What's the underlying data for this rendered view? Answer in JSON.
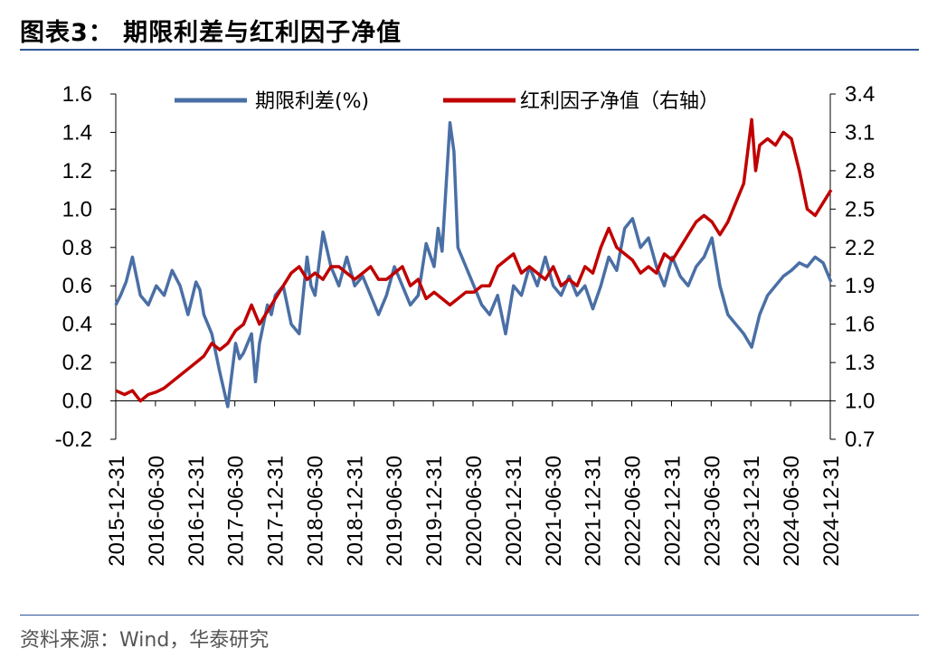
{
  "title": "图表3：  期限利差与红利因子净值",
  "source": "资料来源：Wind，华泰研究",
  "colors": {
    "spread": "#4a6fa5",
    "dividend": "#c00000",
    "rule": "#2e5597"
  },
  "chart_data": {
    "type": "line",
    "title": "期限利差与红利因子净值",
    "x_ticks": [
      "2015-12-31",
      "2016-06-30",
      "2016-12-31",
      "2017-06-30",
      "2017-12-31",
      "2018-06-30",
      "2018-12-31",
      "2019-06-30",
      "2019-12-31",
      "2020-06-30",
      "2020-12-31",
      "2021-06-30",
      "2021-12-31",
      "2022-06-30",
      "2022-12-31",
      "2023-06-30",
      "2023-12-31",
      "2024-06-30",
      "2024-12-31"
    ],
    "y_left": {
      "label": "期限利差(%)",
      "range": [
        -0.2,
        1.6
      ],
      "ticks": [
        "-0.2",
        "0.0",
        "0.2",
        "0.4",
        "0.6",
        "0.8",
        "1.0",
        "1.2",
        "1.4",
        "1.6"
      ]
    },
    "y_right": {
      "label": "红利因子净值（右轴）",
      "range": [
        0.7,
        3.4
      ],
      "ticks": [
        "0.7",
        "1.0",
        "1.3",
        "1.6",
        "1.9",
        "2.2",
        "2.5",
        "2.8",
        "3.1",
        "3.4"
      ]
    },
    "legend": [
      "期限利差(%)",
      "红利因子净值（右轴）"
    ],
    "legend_position": "top",
    "series": [
      {
        "name": "期限利差(%)",
        "axis": "left",
        "color": "#4a6fa5",
        "x": [
          2015.99,
          2016.05,
          2016.12,
          2016.2,
          2016.3,
          2016.4,
          2016.5,
          2016.6,
          2016.7,
          2016.8,
          2016.9,
          2017.0,
          2017.05,
          2017.1,
          2017.2,
          2017.3,
          2017.4,
          2017.5,
          2017.55,
          2017.6,
          2017.7,
          2017.75,
          2017.8,
          2017.9,
          2017.95,
          2018.0,
          2018.1,
          2018.2,
          2018.3,
          2018.4,
          2018.45,
          2018.5,
          2018.6,
          2018.7,
          2018.8,
          2018.9,
          2019.0,
          2019.1,
          2019.2,
          2019.3,
          2019.4,
          2019.5,
          2019.6,
          2019.7,
          2019.8,
          2019.9,
          2020.0,
          2020.05,
          2020.1,
          2020.2,
          2020.25,
          2020.3,
          2020.35,
          2020.4,
          2020.5,
          2020.6,
          2020.7,
          2020.8,
          2020.9,
          2021.0,
          2021.1,
          2021.2,
          2021.3,
          2021.4,
          2021.5,
          2021.6,
          2021.7,
          2021.8,
          2021.9,
          2022.0,
          2022.1,
          2022.2,
          2022.3,
          2022.4,
          2022.5,
          2022.6,
          2022.7,
          2022.8,
          2022.9,
          2023.0,
          2023.1,
          2023.2,
          2023.3,
          2023.4,
          2023.5,
          2023.6,
          2023.7,
          2023.8,
          2023.9,
          2024.0,
          2024.1,
          2024.2,
          2024.3,
          2024.4,
          2024.5,
          2024.6,
          2024.7,
          2024.8,
          2024.9,
          2025.0
        ],
        "values": [
          0.5,
          0.55,
          0.62,
          0.75,
          0.55,
          0.5,
          0.6,
          0.55,
          0.68,
          0.6,
          0.45,
          0.62,
          0.58,
          0.45,
          0.35,
          0.15,
          -0.03,
          0.3,
          0.22,
          0.25,
          0.35,
          0.1,
          0.3,
          0.5,
          0.45,
          0.55,
          0.6,
          0.4,
          0.35,
          0.75,
          0.6,
          0.55,
          0.88,
          0.7,
          0.6,
          0.75,
          0.6,
          0.65,
          0.55,
          0.45,
          0.55,
          0.7,
          0.6,
          0.5,
          0.55,
          0.82,
          0.7,
          0.9,
          0.78,
          1.45,
          1.3,
          0.8,
          0.75,
          0.7,
          0.6,
          0.5,
          0.45,
          0.55,
          0.35,
          0.6,
          0.55,
          0.7,
          0.6,
          0.75,
          0.6,
          0.55,
          0.65,
          0.55,
          0.6,
          0.48,
          0.6,
          0.75,
          0.68,
          0.9,
          0.95,
          0.8,
          0.85,
          0.7,
          0.6,
          0.75,
          0.65,
          0.6,
          0.7,
          0.75,
          0.85,
          0.6,
          0.45,
          0.4,
          0.35,
          0.28,
          0.45,
          0.55,
          0.6,
          0.65,
          0.68,
          0.72,
          0.7,
          0.75,
          0.72,
          0.62
        ],
        "data_label_note": ""
      },
      {
        "name": "红利因子净值（右轴）",
        "axis": "right",
        "color": "#c00000",
        "x": [
          2015.99,
          2016.1,
          2016.2,
          2016.3,
          2016.4,
          2016.5,
          2016.6,
          2016.7,
          2016.8,
          2016.9,
          2017.0,
          2017.1,
          2017.2,
          2017.3,
          2017.4,
          2017.5,
          2017.6,
          2017.7,
          2017.8,
          2017.9,
          2018.0,
          2018.1,
          2018.2,
          2018.3,
          2018.4,
          2018.5,
          2018.6,
          2018.7,
          2018.8,
          2018.9,
          2019.0,
          2019.1,
          2019.2,
          2019.3,
          2019.4,
          2019.5,
          2019.6,
          2019.7,
          2019.8,
          2019.9,
          2020.0,
          2020.1,
          2020.2,
          2020.3,
          2020.4,
          2020.5,
          2020.6,
          2020.7,
          2020.8,
          2020.9,
          2021.0,
          2021.1,
          2021.2,
          2021.3,
          2021.4,
          2021.5,
          2021.6,
          2021.7,
          2021.8,
          2021.9,
          2022.0,
          2022.1,
          2022.2,
          2022.3,
          2022.4,
          2022.5,
          2022.6,
          2022.7,
          2022.8,
          2022.9,
          2023.0,
          2023.1,
          2023.2,
          2023.3,
          2023.4,
          2023.5,
          2023.6,
          2023.7,
          2023.8,
          2023.9,
          2024.0,
          2024.05,
          2024.1,
          2024.2,
          2024.3,
          2024.4,
          2024.5,
          2024.6,
          2024.7,
          2024.8,
          2024.9,
          2025.0
        ],
        "values": [
          1.08,
          1.05,
          1.08,
          1.0,
          1.05,
          1.07,
          1.1,
          1.15,
          1.2,
          1.25,
          1.3,
          1.35,
          1.45,
          1.4,
          1.45,
          1.55,
          1.6,
          1.75,
          1.6,
          1.7,
          1.8,
          1.9,
          2.0,
          2.05,
          1.95,
          2.0,
          1.95,
          2.05,
          2.05,
          2.0,
          1.95,
          2.0,
          2.05,
          1.95,
          1.95,
          2.0,
          2.05,
          1.9,
          1.95,
          1.8,
          1.85,
          1.8,
          1.75,
          1.8,
          1.85,
          1.85,
          1.9,
          1.9,
          2.05,
          2.1,
          2.15,
          2.0,
          2.05,
          2.0,
          1.95,
          2.05,
          1.9,
          1.95,
          1.9,
          2.05,
          2.0,
          2.2,
          2.35,
          2.2,
          2.15,
          2.1,
          2.0,
          2.05,
          2.0,
          2.15,
          2.1,
          2.2,
          2.3,
          2.4,
          2.45,
          2.4,
          2.3,
          2.4,
          2.55,
          2.7,
          3.2,
          2.8,
          3.0,
          3.05,
          3.0,
          3.1,
          3.05,
          2.8,
          2.5,
          2.45,
          2.55,
          2.65
        ]
      }
    ]
  }
}
